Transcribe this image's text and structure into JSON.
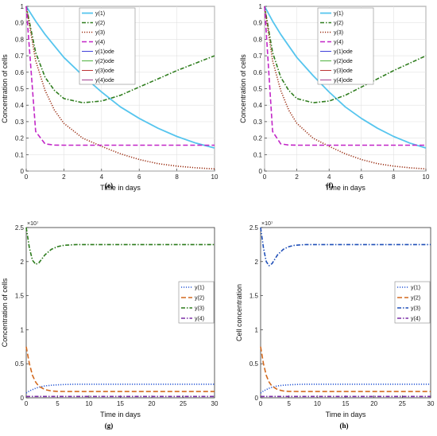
{
  "chart_data": [
    {
      "type": "line",
      "panel": "(e)",
      "xlabel": "Time in days",
      "ylabel": "Concentration of cells",
      "xlim": [
        0,
        10
      ],
      "ylim": [
        0,
        1
      ],
      "xticks": [
        "0",
        "2",
        "4",
        "6",
        "8",
        "10"
      ],
      "yticks": [
        "0",
        "0.1",
        "0.2",
        "0.3",
        "0.4",
        "0.5",
        "0.6",
        "0.7",
        "0.8",
        "0.9",
        "1"
      ],
      "grid": true,
      "legend": "top-right",
      "x": [
        0,
        0.5,
        1,
        1.5,
        2,
        3,
        4,
        5,
        6,
        7,
        8,
        9,
        10
      ],
      "series": [
        {
          "name": "y(1)",
          "color": "#56c5ee",
          "style": "solid",
          "values": [
            1.0,
            0.91,
            0.83,
            0.76,
            0.69,
            0.58,
            0.48,
            0.39,
            0.32,
            0.26,
            0.21,
            0.17,
            0.14
          ]
        },
        {
          "name": "y(2)",
          "color": "#2f7d1e",
          "style": "dashdot",
          "values": [
            1.0,
            0.72,
            0.57,
            0.49,
            0.44,
            0.415,
            0.425,
            0.46,
            0.51,
            0.56,
            0.61,
            0.655,
            0.7
          ]
        },
        {
          "name": "y(3)",
          "color": "#9b2f14",
          "style": "dotted",
          "values": [
            1.0,
            0.67,
            0.49,
            0.37,
            0.29,
            0.2,
            0.15,
            0.105,
            0.07,
            0.045,
            0.03,
            0.02,
            0.013
          ]
        },
        {
          "name": "y(4)",
          "color": "#c226c7",
          "style": "dashed",
          "values": [
            1.0,
            0.24,
            0.165,
            0.158,
            0.157,
            0.157,
            0.157,
            0.157,
            0.157,
            0.157,
            0.157,
            0.157,
            0.157
          ]
        },
        {
          "name": "y(1)ode",
          "color": "#2b2bd6",
          "style": "solid-thin",
          "legend_only": true
        },
        {
          "name": "y(2)ode",
          "color": "#3aaa2a",
          "style": "solid-thin",
          "legend_only": true
        },
        {
          "name": "y(3)ode",
          "color": "#b51e1e",
          "style": "solid-thin",
          "legend_only": true
        },
        {
          "name": "y(4)ode",
          "color": "#9a2b82",
          "style": "solid-thin",
          "legend_only": true
        }
      ]
    },
    {
      "type": "line",
      "panel": "(f)",
      "xlabel": "Time in days",
      "ylabel": "Concentration of cells",
      "xlim": [
        0,
        10
      ],
      "ylim": [
        0,
        1
      ],
      "xticks": [
        "0",
        "2",
        "4",
        "6",
        "8",
        "10"
      ],
      "yticks": [
        "0",
        "0.1",
        "0.2",
        "0.3",
        "0.4",
        "0.5",
        "0.6",
        "0.7",
        "0.8",
        "0.9",
        "1"
      ],
      "grid": true,
      "legend": "top-right",
      "x": [
        0,
        0.5,
        1,
        1.5,
        2,
        3,
        4,
        5,
        6,
        7,
        8,
        9,
        10
      ],
      "series": [
        {
          "name": "y(1)",
          "color": "#56c5ee",
          "style": "solid",
          "values": [
            1.0,
            0.91,
            0.83,
            0.76,
            0.69,
            0.58,
            0.48,
            0.39,
            0.32,
            0.26,
            0.21,
            0.17,
            0.14
          ]
        },
        {
          "name": "y(2)",
          "color": "#2f7d1e",
          "style": "dashdot",
          "values": [
            1.0,
            0.72,
            0.57,
            0.49,
            0.44,
            0.415,
            0.425,
            0.46,
            0.51,
            0.56,
            0.61,
            0.655,
            0.7
          ]
        },
        {
          "name": "y(3)",
          "color": "#9b2f14",
          "style": "dotted",
          "values": [
            1.0,
            0.67,
            0.49,
            0.37,
            0.29,
            0.2,
            0.15,
            0.105,
            0.07,
            0.045,
            0.03,
            0.02,
            0.013
          ]
        },
        {
          "name": "y(4)",
          "color": "#c226c7",
          "style": "dashed",
          "values": [
            1.0,
            0.24,
            0.165,
            0.158,
            0.157,
            0.157,
            0.157,
            0.157,
            0.157,
            0.157,
            0.157,
            0.157,
            0.157
          ]
        },
        {
          "name": "y(1)ode",
          "color": "#2b2bd6",
          "style": "solid-thin",
          "legend_only": true
        },
        {
          "name": "y(2)ode",
          "color": "#3aaa2a",
          "style": "solid-thin",
          "legend_only": true
        },
        {
          "name": "y(3)ode",
          "color": "#b51e1e",
          "style": "solid-thin",
          "legend_only": true
        },
        {
          "name": "y(4)ode",
          "color": "#9a2b82",
          "style": "solid-thin",
          "legend_only": true
        }
      ]
    },
    {
      "type": "line",
      "panel": "(g)",
      "xlabel": "Time in days",
      "ylabel": "Concentration of cells",
      "xlim": [
        0,
        30
      ],
      "ylim": [
        0,
        2.5
      ],
      "y_exponent_label": "×10⁷",
      "xticks": [
        "0",
        "5",
        "10",
        "15",
        "20",
        "25",
        "30"
      ],
      "yticks": [
        "0",
        "0.5",
        "1",
        "1.5",
        "2",
        "2.5"
      ],
      "grid": false,
      "legend": "right",
      "x": [
        0,
        0.5,
        1,
        1.5,
        2,
        3,
        4,
        5,
        6,
        8,
        10,
        15,
        20,
        25,
        30
      ],
      "series": [
        {
          "name": "y(1)",
          "color": "#2c5bd6",
          "style": "dotted",
          "values": [
            0.07,
            0.1,
            0.12,
            0.14,
            0.155,
            0.175,
            0.185,
            0.19,
            0.195,
            0.2,
            0.2,
            0.2,
            0.2,
            0.2,
            0.2
          ]
        },
        {
          "name": "y(2)",
          "color": "#d2691e",
          "style": "dashed",
          "values": [
            0.75,
            0.5,
            0.33,
            0.23,
            0.17,
            0.12,
            0.1,
            0.095,
            0.093,
            0.092,
            0.092,
            0.092,
            0.092,
            0.092,
            0.092
          ]
        },
        {
          "name": "y(3)",
          "color": "#2a7a1a",
          "style": "dashdot",
          "values": [
            2.5,
            2.2,
            2.02,
            1.96,
            1.98,
            2.1,
            2.18,
            2.22,
            2.24,
            2.25,
            2.25,
            2.25,
            2.25,
            2.25,
            2.25
          ]
        },
        {
          "name": "y(4)",
          "color": "#7b2fa6",
          "style": "dashdot",
          "values": [
            0.02,
            0.02,
            0.02,
            0.02,
            0.02,
            0.02,
            0.02,
            0.02,
            0.02,
            0.02,
            0.02,
            0.02,
            0.02,
            0.02,
            0.02
          ]
        }
      ]
    },
    {
      "type": "line",
      "panel": "(h)",
      "xlabel": "Time in days",
      "ylabel": "Cell concentration",
      "xlim": [
        0,
        30
      ],
      "ylim": [
        0,
        2.5
      ],
      "y_exponent_label": "×10⁷",
      "xticks": [
        "0",
        "5",
        "10",
        "15",
        "20",
        "25",
        "30"
      ],
      "yticks": [
        "0",
        "0.5",
        "1",
        "1.5",
        "2",
        "2.5"
      ],
      "grid": false,
      "legend": "right",
      "x": [
        0,
        0.5,
        1,
        1.5,
        2,
        3,
        4,
        5,
        6,
        8,
        10,
        15,
        20,
        25,
        30
      ],
      "series": [
        {
          "name": "y(1)",
          "color": "#2c5bd6",
          "style": "dotted",
          "values": [
            0.07,
            0.1,
            0.12,
            0.14,
            0.155,
            0.175,
            0.185,
            0.19,
            0.195,
            0.2,
            0.2,
            0.2,
            0.2,
            0.2,
            0.2
          ]
        },
        {
          "name": "y(2)",
          "color": "#d2691e",
          "style": "dashed",
          "values": [
            0.75,
            0.5,
            0.33,
            0.23,
            0.17,
            0.12,
            0.1,
            0.095,
            0.093,
            0.092,
            0.092,
            0.092,
            0.092,
            0.092,
            0.092
          ]
        },
        {
          "name": "y(3)",
          "color": "#1f4fb8",
          "style": "dashdot",
          "values": [
            2.5,
            2.2,
            2.0,
            1.94,
            1.97,
            2.1,
            2.18,
            2.22,
            2.24,
            2.25,
            2.25,
            2.25,
            2.25,
            2.25,
            2.25
          ]
        },
        {
          "name": "y(4)",
          "color": "#7b2fa6",
          "style": "dashdot",
          "values": [
            0.02,
            0.02,
            0.02,
            0.02,
            0.02,
            0.02,
            0.02,
            0.02,
            0.02,
            0.02,
            0.02,
            0.02,
            0.02,
            0.02,
            0.02
          ]
        }
      ]
    }
  ]
}
